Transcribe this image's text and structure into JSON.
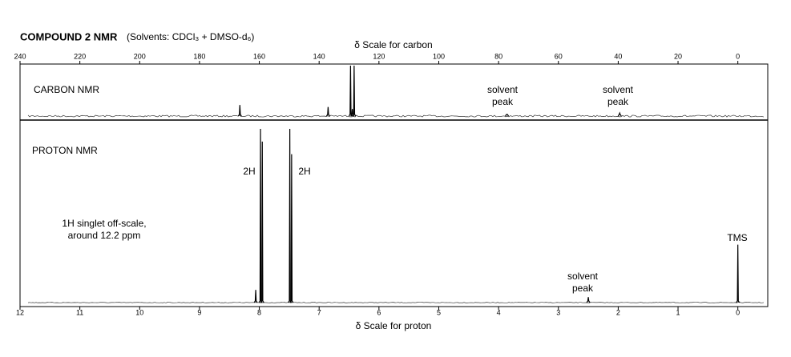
{
  "header": {
    "title": "COMPOUND 2 NMR",
    "subtitle": "(Solvents: CDCl₃ + DMSO-d₆)"
  },
  "chart_data": [
    {
      "type": "spectrum",
      "label": "CARBON NMR",
      "xlabel": "δ Scale for carbon",
      "color": "#000000",
      "xlim": [
        240,
        -10
      ],
      "xticks": [
        240,
        220,
        200,
        180,
        160,
        140,
        120,
        100,
        80,
        60,
        40,
        20,
        0
      ],
      "ylim": [
        0,
        100
      ],
      "x": [
        166.5,
        137,
        129.5,
        128.3,
        128.9,
        77.2,
        39.5
      ],
      "values": [
        22,
        18,
        100,
        100,
        14,
        3,
        6
      ],
      "annotations": [
        {
          "text": [
            "solvent",
            "peak"
          ]
        },
        {
          "text": [
            "solvent",
            "peak"
          ]
        }
      ]
    },
    {
      "type": "spectrum",
      "label": "PROTON NMR",
      "xlabel": "δ Scale for proton",
      "color": "#000000",
      "xlim": [
        12,
        -0.5
      ],
      "xticks": [
        12,
        11,
        10,
        9,
        8,
        7,
        6,
        5,
        4,
        3,
        2,
        1,
        0
      ],
      "ylim": [
        0,
        100
      ],
      "x": [
        8.06,
        7.98,
        7.95,
        7.49,
        7.46,
        2.5,
        0
      ],
      "values": [
        7,
        96,
        89,
        96,
        82,
        3,
        32
      ],
      "annotations": [
        {
          "text": [
            "2H"
          ]
        },
        {
          "text": [
            "2H"
          ]
        },
        {
          "text": [
            "1H singlet off-scale,",
            "around 12.2 ppm"
          ]
        },
        {
          "text": [
            "solvent",
            "peak"
          ]
        },
        {
          "text": [
            "TMS"
          ]
        }
      ]
    }
  ]
}
